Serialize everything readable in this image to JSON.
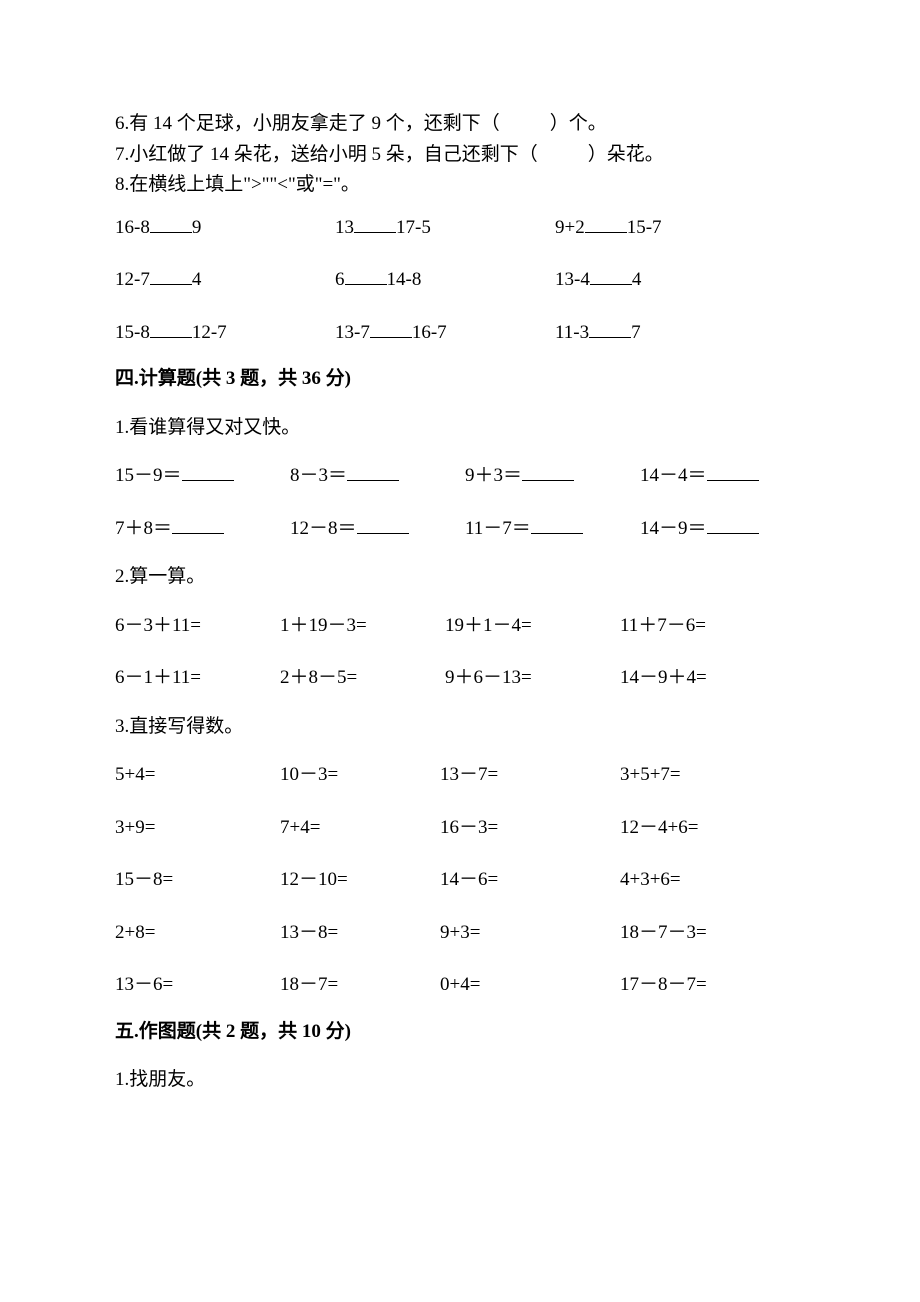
{
  "type": "document",
  "font_family": "SimSun",
  "font_size_pt": 14,
  "text_color": "#000000",
  "background_color": "#ffffff",
  "fill_items": {
    "item6": "6.有 14 个足球，小朋友拿走了 9 个，还剩下（",
    "item6_end": "）个。",
    "item7": "7.小红做了 14 朵花，送给小明 5 朵，自己还剩下（",
    "item7_end": "）朵花。",
    "item8": "8.在横线上填上\">\"\"<\"或\"=\"。"
  },
  "comparison_rows": [
    {
      "a": {
        "left": "16-8",
        "right": "9"
      },
      "b": {
        "left": "13",
        "right": "17-5"
      },
      "c": {
        "left": "9+2",
        "right": "15-7"
      }
    },
    {
      "a": {
        "left": "12-7",
        "right": "4"
      },
      "b": {
        "left": "6",
        "right": "14-8"
      },
      "c": {
        "left": "13-4",
        "right": "4"
      }
    },
    {
      "a": {
        "left": "15-8",
        "right": "12-7"
      },
      "b": {
        "left": "13-7",
        "right": "16-7"
      },
      "c": {
        "left": "11-3",
        "right": "7"
      }
    }
  ],
  "section4": {
    "header": "四.计算题(共 3 题，共 36 分)",
    "q1": {
      "prompt": "1.看谁算得又对又快。",
      "rows": [
        [
          "15－9＝",
          "8－3＝",
          "9＋3＝",
          "14－4＝"
        ],
        [
          "7＋8＝",
          "12－8＝",
          "11－7＝",
          "14－9＝"
        ]
      ]
    },
    "q2": {
      "prompt": "2.算一算。",
      "rows": [
        [
          "6－3＋11=",
          "1＋19－3=",
          "19＋1－4=",
          "11＋7－6="
        ],
        [
          "6－1＋11=",
          "2＋8－5=",
          "9＋6－13=",
          "14－9＋4="
        ]
      ]
    },
    "q3": {
      "prompt": "3.直接写得数。",
      "rows": [
        [
          "5+4=",
          "10－3=",
          "13－7=",
          "3+5+7="
        ],
        [
          "3+9=",
          "7+4=",
          "16－3=",
          "12－4+6="
        ],
        [
          "15－8=",
          "12－10=",
          "14－6=",
          "4+3+6="
        ],
        [
          "2+8=",
          "13－8=",
          "9+3=",
          "18－7－3="
        ],
        [
          "13－6=",
          "18－7=",
          "0+4=",
          "17－8－7="
        ]
      ]
    }
  },
  "section5": {
    "header": "五.作图题(共 2 题，共 10 分)",
    "q1": {
      "prompt": "1.找朋友。"
    }
  }
}
